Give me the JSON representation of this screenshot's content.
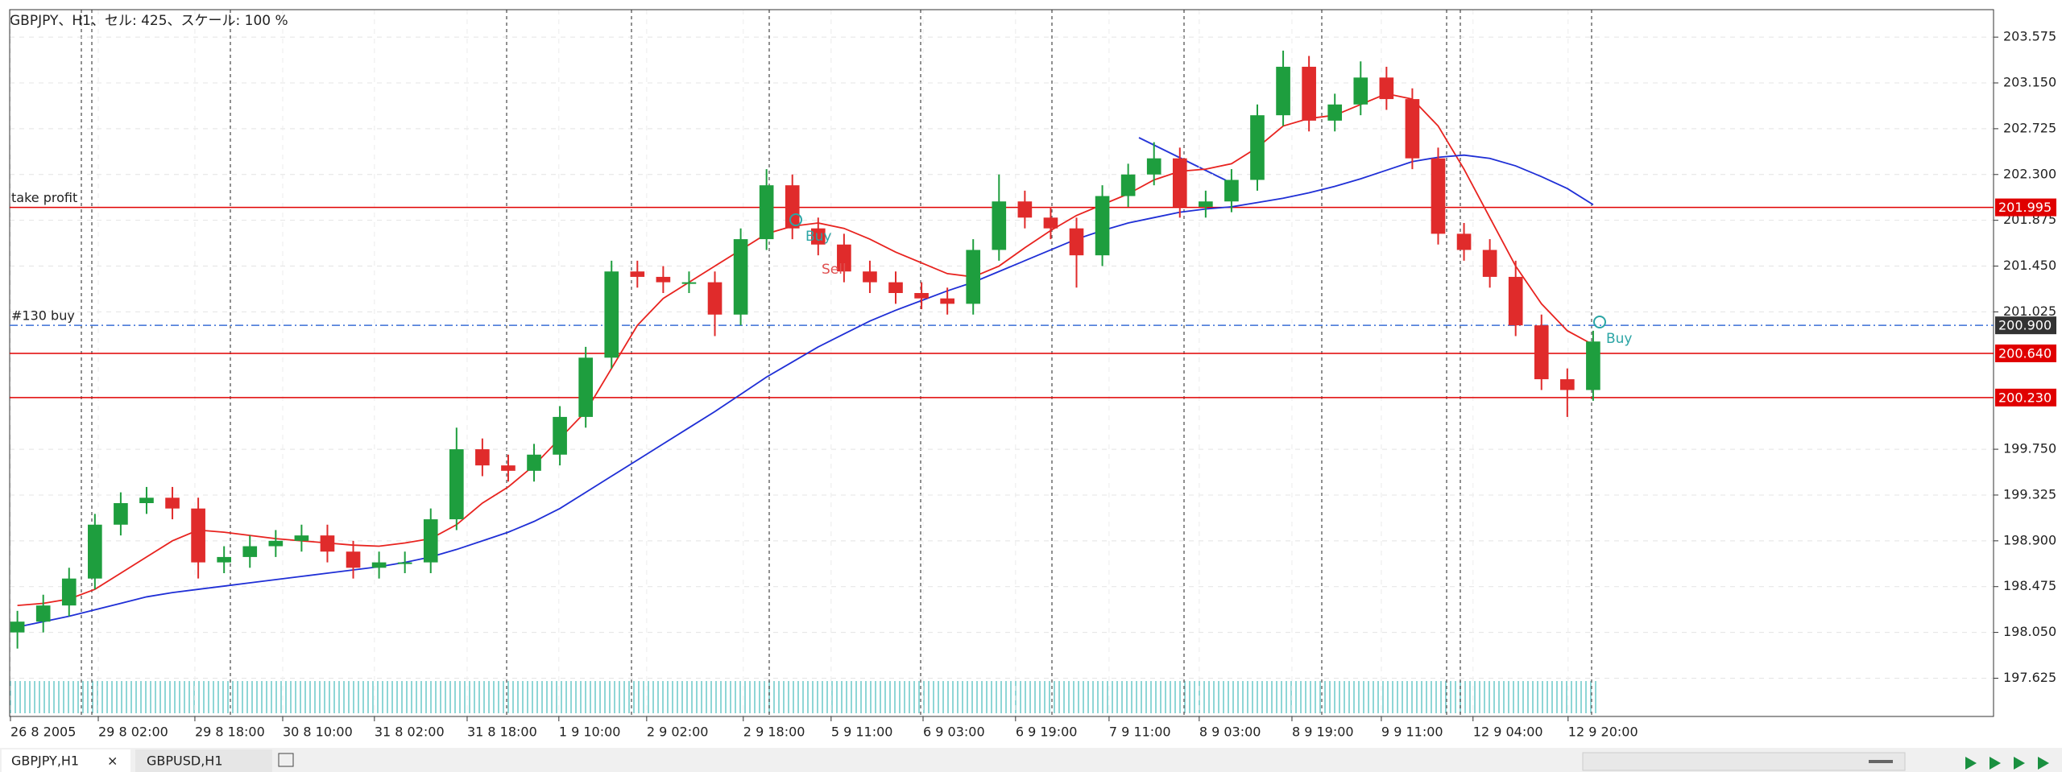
{
  "header": {
    "title": "GBPJPY、H1、セル: 425、スケール: 100 %"
  },
  "chart_data": {
    "type": "candlestick",
    "up_color": "#1e9e3e",
    "down_color": "#e02b2b",
    "open": [
      198.05,
      198.15,
      198.3,
      198.55,
      199.05,
      199.25,
      199.3,
      199.2,
      198.7,
      198.75,
      198.85,
      198.9,
      198.95,
      198.8,
      198.65,
      198.7,
      198.7,
      199.1,
      199.75,
      199.6,
      199.55,
      199.7,
      200.05,
      200.6,
      201.4,
      201.35,
      201.3,
      201.3,
      201.0,
      201.7,
      202.2,
      201.8,
      201.65,
      201.4,
      201.3,
      201.2,
      201.15,
      201.1,
      201.6,
      202.05,
      201.9,
      201.8,
      201.55,
      202.1,
      202.3,
      202.45,
      202.0,
      202.05,
      202.25,
      202.85,
      203.3,
      202.8,
      202.95,
      203.2,
      203.0,
      202.45,
      201.75,
      201.6,
      201.35,
      200.9,
      200.4,
      200.3
    ],
    "high": [
      198.25,
      198.4,
      198.65,
      199.15,
      199.35,
      199.4,
      199.4,
      199.3,
      198.85,
      198.95,
      199.0,
      199.05,
      199.05,
      198.9,
      198.8,
      198.8,
      199.2,
      199.95,
      199.85,
      199.7,
      199.8,
      200.15,
      200.7,
      201.5,
      201.5,
      201.45,
      201.4,
      201.4,
      201.8,
      202.35,
      202.3,
      201.9,
      201.75,
      201.5,
      201.4,
      201.3,
      201.25,
      201.7,
      202.3,
      202.15,
      202.0,
      201.9,
      202.2,
      202.4,
      202.6,
      202.55,
      202.15,
      202.35,
      202.95,
      203.45,
      203.4,
      203.05,
      203.35,
      203.3,
      203.1,
      202.55,
      201.85,
      201.7,
      201.5,
      201.0,
      200.5,
      200.85
    ],
    "low": [
      197.9,
      198.05,
      198.2,
      198.45,
      198.95,
      199.15,
      199.1,
      198.55,
      198.6,
      198.65,
      198.75,
      198.8,
      198.7,
      198.55,
      198.55,
      198.6,
      198.6,
      199.0,
      199.5,
      199.45,
      199.45,
      199.6,
      199.95,
      200.5,
      201.25,
      201.2,
      201.2,
      200.8,
      200.9,
      201.6,
      201.7,
      201.55,
      201.3,
      201.2,
      201.1,
      201.05,
      201.0,
      201.0,
      201.5,
      201.8,
      201.7,
      201.25,
      201.45,
      202.0,
      202.2,
      201.9,
      201.9,
      201.95,
      202.15,
      202.75,
      202.7,
      202.7,
      202.85,
      202.9,
      202.35,
      201.65,
      201.5,
      201.25,
      200.8,
      200.3,
      200.05,
      200.2
    ],
    "close": [
      198.15,
      198.3,
      198.55,
      199.05,
      199.25,
      199.3,
      199.2,
      198.7,
      198.75,
      198.85,
      198.9,
      198.95,
      198.8,
      198.65,
      198.7,
      198.7,
      199.1,
      199.75,
      199.6,
      199.55,
      199.7,
      200.05,
      200.6,
      201.4,
      201.35,
      201.3,
      201.3,
      201.0,
      201.7,
      202.2,
      201.8,
      201.65,
      201.4,
      201.3,
      201.2,
      201.15,
      201.1,
      201.6,
      202.05,
      201.9,
      201.8,
      201.55,
      202.1,
      202.3,
      202.45,
      202.0,
      202.05,
      202.25,
      202.85,
      203.3,
      202.8,
      202.95,
      203.2,
      203.0,
      202.45,
      201.75,
      201.6,
      201.35,
      200.9,
      200.4,
      200.3,
      200.75
    ],
    "moving_averages": [
      {
        "color": "#e8231f",
        "values": [
          198.3,
          198.32,
          198.36,
          198.45,
          198.6,
          198.75,
          198.9,
          199.0,
          198.98,
          198.95,
          198.92,
          198.9,
          198.88,
          198.86,
          198.85,
          198.88,
          198.92,
          199.05,
          199.25,
          199.4,
          199.6,
          199.85,
          200.1,
          200.5,
          200.9,
          201.15,
          201.3,
          201.45,
          201.6,
          201.75,
          201.82,
          201.85,
          201.8,
          201.7,
          201.58,
          201.48,
          201.38,
          201.35,
          201.45,
          201.62,
          201.78,
          201.92,
          202.02,
          202.12,
          202.25,
          202.33,
          202.35,
          202.4,
          202.55,
          202.75,
          202.82,
          202.85,
          202.95,
          203.05,
          203.0,
          202.75,
          202.35,
          201.9,
          201.45,
          201.1,
          200.85,
          200.72
        ]
      },
      {
        "color": "#1f2fd6",
        "values": [
          198.1,
          198.15,
          198.2,
          198.26,
          198.32,
          198.38,
          198.42,
          198.45,
          198.48,
          198.51,
          198.54,
          198.57,
          198.6,
          198.63,
          198.66,
          198.7,
          198.75,
          198.82,
          198.9,
          198.98,
          199.08,
          199.2,
          199.35,
          199.5,
          199.65,
          199.8,
          199.95,
          200.1,
          200.26,
          200.42,
          200.56,
          200.7,
          200.82,
          200.94,
          201.04,
          201.13,
          201.22,
          201.3,
          201.4,
          201.5,
          201.6,
          201.7,
          201.78,
          201.85,
          201.9,
          201.95,
          201.98,
          202.0,
          202.04,
          202.08,
          202.13,
          202.19,
          202.26,
          202.34,
          202.42,
          202.46,
          202.48,
          202.45,
          202.38,
          202.28,
          202.17,
          202.02
        ]
      }
    ],
    "levels": [
      {
        "label": "take profit",
        "value": 201.995,
        "value_label": "201.995",
        "color": "#e00000"
      },
      {
        "label": "#130 buy",
        "value": 200.9,
        "value_label": "200.900",
        "color": "#3b6fd6",
        "dashed": true
      },
      {
        "value": 200.64,
        "value_label": "200.640",
        "color": "#e00000"
      },
      {
        "value": 200.23,
        "value_label": "200.230",
        "color": "#e00000"
      }
    ],
    "annotations": [
      "Buy",
      "Sell",
      "Buy"
    ],
    "ylim": [
      197.27,
      203.83
    ],
    "yticks": [
      203.575,
      {
        "value": 203.15,
        "label": "203.150"
      },
      202.725,
      {
        "value": 202.3,
        "label": "202.300"
      },
      201.875,
      {
        "value": 201.45,
        "label": "201.450"
      },
      201.025,
      {
        "value": 199.75,
        "label": "199.750"
      },
      199.325,
      {
        "value": 198.9,
        "label": "198.900"
      },
      198.475,
      {
        "value": 198.05,
        "label": "198.050"
      },
      197.625
    ],
    "xlim": [
      -0.3,
      76.5
    ],
    "xticks": [
      {
        "value": -0.27,
        "label": "26 8 2005"
      },
      {
        "value": 3.13,
        "label": "29 8 02:00"
      },
      {
        "value": 6.87,
        "label": "29 8 18:00"
      },
      {
        "value": 10.27,
        "label": "30 8 10:00"
      },
      {
        "value": 13.82,
        "label": "31 8 02:00"
      },
      {
        "value": 17.41,
        "label": "31 8 18:00"
      },
      {
        "value": 20.96,
        "label": "1 9 10:00"
      },
      {
        "value": 24.36,
        "label": "2 9 02:00"
      },
      {
        "value": 28.1,
        "label": "2 9 18:00"
      },
      {
        "value": 31.5,
        "label": "5 9 11:00"
      },
      {
        "value": 35.06,
        "label": "6 9 03:00"
      },
      {
        "value": 38.64,
        "label": "6 9 19:00"
      },
      {
        "value": 42.26,
        "label": "7 9 11:00"
      },
      {
        "value": 45.75,
        "label": "8 9 03:00"
      },
      {
        "value": 49.34,
        "label": "8 9 19:00"
      },
      {
        "value": 52.8,
        "label": "9 9 11:00"
      },
      {
        "value": 56.35,
        "label": "12 9 04:00"
      },
      {
        "value": 60.03,
        "label": "12 9 20:00"
      }
    ],
    "grid": true
  },
  "tabs": [
    "GBPJPY,H1",
    "GBPUSD,H1"
  ]
}
